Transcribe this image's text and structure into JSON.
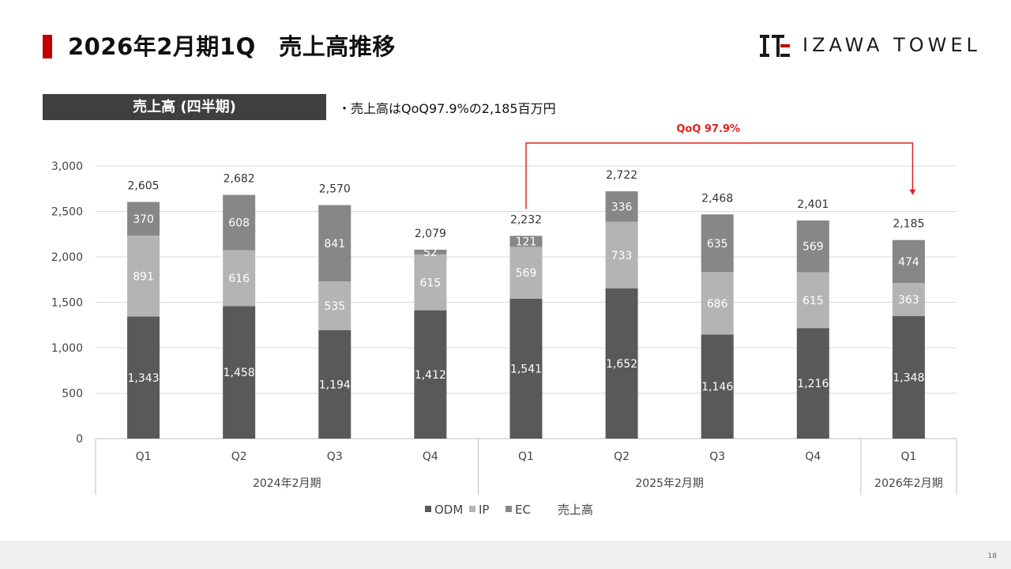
{
  "header": {
    "title": "2026年2月期1Q　売上高推移",
    "logo_text": "IZAWA TOWEL"
  },
  "section": {
    "label": "売上高 (四半期)",
    "bullet": "・売上高はQoQ97.9%の2,185百万円"
  },
  "annotation": {
    "text": "QoQ 97.9%",
    "color": "#e02020"
  },
  "colors": {
    "ODM": "#595959",
    "IP": "#b4b4b4",
    "EC": "#878787",
    "accent": "#c00000"
  },
  "chart_data": {
    "type": "bar",
    "stacked": true,
    "categories": [
      "Q1",
      "Q2",
      "Q3",
      "Q4",
      "Q1",
      "Q2",
      "Q3",
      "Q4",
      "Q1"
    ],
    "groups": [
      {
        "label": "2024年2月期",
        "count": 4
      },
      {
        "label": "2025年2月期",
        "count": 4
      },
      {
        "label": "2026年2月期",
        "count": 1
      }
    ],
    "series": [
      {
        "name": "ODM",
        "values": [
          1343,
          1458,
          1194,
          1412,
          1541,
          1652,
          1146,
          1216,
          1348
        ]
      },
      {
        "name": "IP",
        "values": [
          891,
          616,
          535,
          615,
          569,
          733,
          686,
          615,
          363
        ]
      },
      {
        "name": "EC",
        "values": [
          370,
          608,
          841,
          52,
          121,
          336,
          635,
          569,
          474
        ]
      }
    ],
    "totals": [
      2605,
      2682,
      2570,
      2079,
      2232,
      2722,
      2468,
      2401,
      2185
    ],
    "total_label": "売上高",
    "yticks": [
      "0",
      "500",
      "1,000",
      "1,500",
      "2,000",
      "2,500",
      "3,000"
    ],
    "ylim": [
      0,
      3000
    ],
    "grid": true,
    "legend": "bottom"
  },
  "footer": {
    "page": "18"
  }
}
